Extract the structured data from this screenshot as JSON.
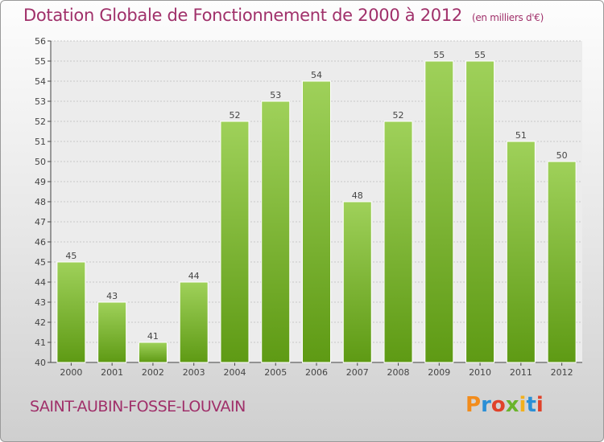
{
  "chart_data": {
    "type": "bar",
    "title": "Dotation Globale de Fonctionnement de 2000 à 2012",
    "subtitle": "(en milliers d'€)",
    "categories": [
      "2000",
      "2001",
      "2002",
      "2003",
      "2004",
      "2005",
      "2006",
      "2007",
      "2008",
      "2009",
      "2010",
      "2011",
      "2012"
    ],
    "values": [
      45,
      43,
      41,
      44,
      52,
      53,
      54,
      48,
      52,
      55,
      55,
      51,
      50
    ],
    "ylim": [
      40,
      56
    ],
    "yticks": [
      40,
      41,
      42,
      43,
      44,
      45,
      46,
      47,
      48,
      49,
      50,
      51,
      52,
      53,
      54,
      55,
      56
    ],
    "grid": true,
    "bar_color": "#7cb834",
    "data_labels": true
  },
  "footer": {
    "place": "SAINT-AUBIN-FOSSE-LOUVAIN",
    "logo_letters": [
      "P",
      "r",
      "o",
      "x",
      "i",
      "t",
      "i"
    ]
  },
  "colors": {
    "title": "#a0306a",
    "bar_top": "#9fd15a",
    "bar_bottom": "#5e9a14"
  }
}
